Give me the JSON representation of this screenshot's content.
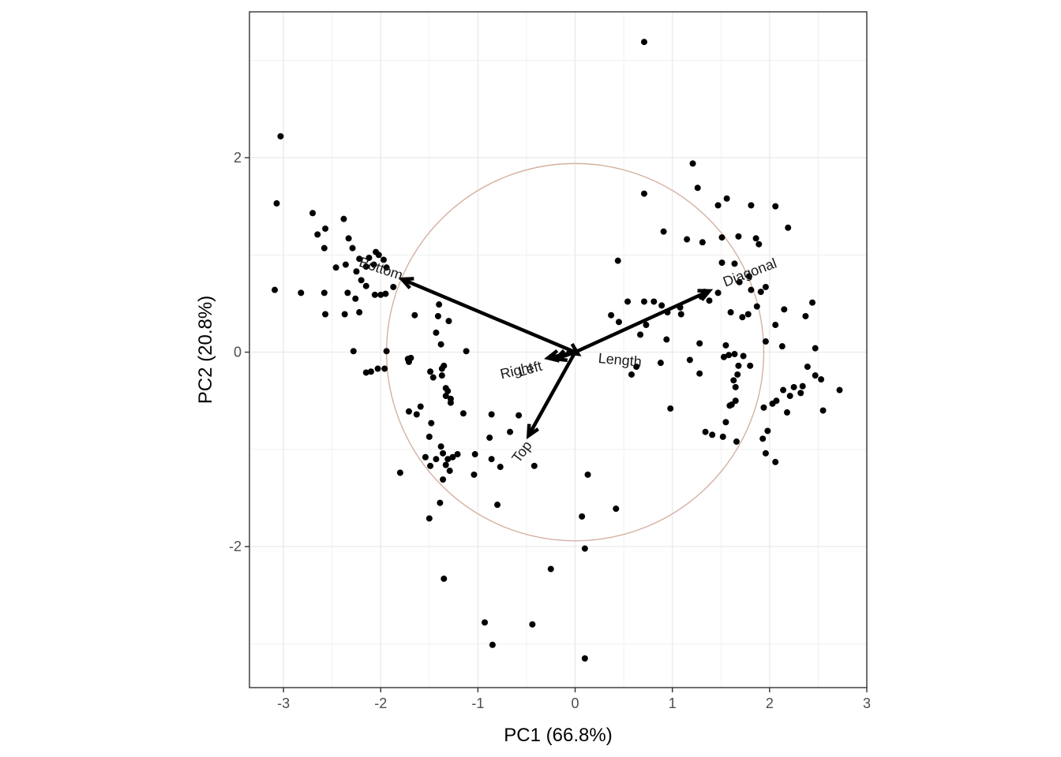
{
  "chart_data": {
    "type": "scatter",
    "title": "",
    "xlabel": "PC1 (66.8%)",
    "ylabel": "PC2 (20.8%)",
    "xlim": [
      -3.35,
      3.0
    ],
    "ylim": [
      -3.45,
      3.5
    ],
    "x_ticks": [
      -3,
      -2,
      -1,
      0,
      1,
      2,
      3
    ],
    "y_ticks": [
      -2,
      0,
      2
    ],
    "x_tick_labels": [
      "-3",
      "-2",
      "-1",
      "0",
      "1",
      "2",
      "3"
    ],
    "y_tick_labels": [
      "-2",
      "0",
      "2"
    ],
    "grid": true,
    "point_color": "#000000",
    "circle_color": "#d4b0a2",
    "circle_radius": 1.94,
    "arrow_color": "#000000",
    "points": [
      [
        0.71,
        3.19
      ],
      [
        -3.03,
        2.22
      ],
      [
        -3.07,
        1.53
      ],
      [
        -2.7,
        1.43
      ],
      [
        -2.38,
        1.37
      ],
      [
        -2.65,
        1.21
      ],
      [
        -2.57,
        1.27
      ],
      [
        -2.33,
        1.17
      ],
      [
        -2.29,
        1.07
      ],
      [
        -2.58,
        1.07
      ],
      [
        -2.46,
        0.87
      ],
      [
        -2.36,
        0.9
      ],
      [
        -2.15,
        0.88
      ],
      [
        -2.07,
        0.9
      ],
      [
        -2.12,
        0.97
      ],
      [
        -2.22,
        0.96
      ],
      [
        -2.02,
        1.0
      ],
      [
        -1.94,
        0.87
      ],
      [
        -2.05,
        1.03
      ],
      [
        -1.97,
        0.95
      ],
      [
        -3.09,
        0.64
      ],
      [
        -2.82,
        0.61
      ],
      [
        -2.58,
        0.61
      ],
      [
        -2.34,
        0.61
      ],
      [
        -2.26,
        0.55
      ],
      [
        -2.06,
        0.59
      ],
      [
        -2.0,
        0.59
      ],
      [
        -1.95,
        0.6
      ],
      [
        -1.87,
        0.67
      ],
      [
        -2.2,
        0.74
      ],
      [
        -2.15,
        0.68
      ],
      [
        -2.25,
        0.83
      ],
      [
        -2.57,
        0.39
      ],
      [
        -2.37,
        0.39
      ],
      [
        -2.22,
        0.41
      ],
      [
        -1.65,
        0.38
      ],
      [
        -1.4,
        0.49
      ],
      [
        -1.41,
        0.37
      ],
      [
        -1.3,
        0.32
      ],
      [
        -2.28,
        0.01
      ],
      [
        -1.94,
        0.01
      ],
      [
        -1.38,
        0.08
      ],
      [
        -1.43,
        0.2
      ],
      [
        -2.1,
        -0.2
      ],
      [
        -2.15,
        -0.21
      ],
      [
        -2.03,
        -0.17
      ],
      [
        -1.96,
        -0.17
      ],
      [
        -1.72,
        -0.07
      ],
      [
        -1.69,
        -0.06
      ],
      [
        -1.71,
        -0.1
      ],
      [
        -1.49,
        -0.2
      ],
      [
        -1.46,
        -0.26
      ],
      [
        -1.35,
        -0.14
      ],
      [
        -1.37,
        -0.17
      ],
      [
        -1.37,
        -0.24
      ],
      [
        -1.31,
        -0.4
      ],
      [
        -1.33,
        -0.37
      ],
      [
        -1.33,
        -0.45
      ],
      [
        -1.28,
        -0.48
      ],
      [
        -1.28,
        -0.52
      ],
      [
        -1.15,
        -0.63
      ],
      [
        -1.71,
        -0.61
      ],
      [
        -1.63,
        -0.64
      ],
      [
        -1.59,
        -0.56
      ],
      [
        -1.48,
        -0.73
      ],
      [
        -1.5,
        -0.87
      ],
      [
        -1.38,
        -0.97
      ],
      [
        -1.36,
        -1.04
      ],
      [
        -1.31,
        -1.1
      ],
      [
        -1.43,
        -1.1
      ],
      [
        -1.49,
        -1.17
      ],
      [
        -1.54,
        -1.08
      ],
      [
        -1.26,
        -1.08
      ],
      [
        -1.21,
        -1.05
      ],
      [
        -1.33,
        -1.16
      ],
      [
        -1.29,
        -1.22
      ],
      [
        -1.36,
        -1.31
      ],
      [
        -1.8,
        -1.24
      ],
      [
        -1.03,
        -1.05
      ],
      [
        -1.04,
        -1.26
      ],
      [
        -0.86,
        -0.64
      ],
      [
        -0.88,
        -0.88
      ],
      [
        -0.58,
        -0.65
      ],
      [
        -0.67,
        -0.82
      ],
      [
        -0.86,
        -1.1
      ],
      [
        -0.77,
        -1.18
      ],
      [
        -0.42,
        -1.17
      ],
      [
        -0.8,
        -1.57
      ],
      [
        -1.39,
        -1.55
      ],
      [
        -1.5,
        -1.71
      ],
      [
        -1.35,
        -2.33
      ],
      [
        0.07,
        -1.69
      ],
      [
        0.13,
        -1.26
      ],
      [
        0.42,
        -1.61
      ],
      [
        0.1,
        -2.02
      ],
      [
        -0.25,
        -2.23
      ],
      [
        -0.93,
        -2.78
      ],
      [
        -0.85,
        -3.01
      ],
      [
        -0.44,
        -2.8
      ],
      [
        0.1,
        -3.15
      ],
      [
        -1.12,
        0.01
      ],
      [
        0.44,
        0.94
      ],
      [
        0.71,
        1.63
      ],
      [
        0.91,
        1.24
      ],
      [
        1.21,
        1.94
      ],
      [
        1.26,
        1.69
      ],
      [
        1.15,
        1.16
      ],
      [
        1.31,
        1.13
      ],
      [
        1.47,
        1.51
      ],
      [
        1.56,
        1.58
      ],
      [
        1.51,
        1.18
      ],
      [
        1.68,
        1.19
      ],
      [
        1.81,
        1.51
      ],
      [
        1.86,
        1.17
      ],
      [
        1.89,
        1.11
      ],
      [
        2.06,
        1.5
      ],
      [
        2.19,
        1.28
      ],
      [
        1.51,
        0.92
      ],
      [
        1.64,
        0.91
      ],
      [
        1.79,
        0.78
      ],
      [
        1.69,
        0.72
      ],
      [
        1.81,
        0.64
      ],
      [
        1.91,
        0.62
      ],
      [
        1.96,
        0.67
      ],
      [
        1.38,
        0.53
      ],
      [
        1.47,
        0.61
      ],
      [
        1.3,
        0.57
      ],
      [
        1.33,
        0.62
      ],
      [
        0.81,
        0.52
      ],
      [
        0.89,
        0.48
      ],
      [
        0.95,
        0.41
      ],
      [
        1.08,
        0.46
      ],
      [
        1.09,
        0.39
      ],
      [
        0.71,
        0.52
      ],
      [
        0.54,
        0.52
      ],
      [
        0.45,
        0.31
      ],
      [
        0.73,
        0.28
      ],
      [
        0.67,
        0.18
      ],
      [
        0.37,
        0.38
      ],
      [
        0.94,
        0.13
      ],
      [
        1.28,
        0.09
      ],
      [
        1.6,
        0.41
      ],
      [
        1.72,
        0.36
      ],
      [
        1.78,
        0.39
      ],
      [
        1.87,
        0.47
      ],
      [
        2.15,
        0.44
      ],
      [
        2.06,
        0.28
      ],
      [
        2.13,
        0.06
      ],
      [
        1.96,
        0.11
      ],
      [
        2.44,
        0.51
      ],
      [
        2.37,
        0.37
      ],
      [
        2.47,
        0.04
      ],
      [
        2.39,
        -0.15
      ],
      [
        2.47,
        -0.24
      ],
      [
        2.53,
        -0.28
      ],
      [
        2.55,
        -0.6
      ],
      [
        2.72,
        -0.39
      ],
      [
        2.34,
        -0.35
      ],
      [
        2.25,
        -0.36
      ],
      [
        2.32,
        -0.42
      ],
      [
        2.14,
        -0.39
      ],
      [
        2.21,
        -0.45
      ],
      [
        2.18,
        -0.62
      ],
      [
        2.07,
        -0.5
      ],
      [
        2.03,
        -0.53
      ],
      [
        1.94,
        -0.57
      ],
      [
        1.98,
        -0.81
      ],
      [
        1.93,
        -0.89
      ],
      [
        1.96,
        -1.04
      ],
      [
        2.06,
        -1.13
      ],
      [
        1.67,
        -0.23
      ],
      [
        1.63,
        -0.29
      ],
      [
        1.65,
        -0.36
      ],
      [
        1.65,
        -0.5
      ],
      [
        1.59,
        -0.55
      ],
      [
        1.61,
        -0.54
      ],
      [
        1.55,
        -0.72
      ],
      [
        1.52,
        -0.87
      ],
      [
        1.66,
        -0.92
      ],
      [
        1.58,
        -0.03
      ],
      [
        1.64,
        -0.02
      ],
      [
        1.73,
        -0.04
      ],
      [
        1.53,
        -0.05
      ],
      [
        1.68,
        -0.14
      ],
      [
        1.8,
        -0.14
      ],
      [
        1.18,
        -0.08
      ],
      [
        1.28,
        -0.22
      ],
      [
        1.34,
        -0.82
      ],
      [
        1.41,
        -0.85
      ],
      [
        0.98,
        -0.58
      ],
      [
        0.58,
        -0.23
      ],
      [
        0.63,
        -0.15
      ],
      [
        0.88,
        -0.11
      ],
      [
        1.55,
        0.07
      ]
    ],
    "loadings": [
      {
        "label": "Bottom",
        "x": -1.78,
        "y": 0.75
      },
      {
        "label": "Diagonal",
        "x": 1.38,
        "y": 0.63
      },
      {
        "label": "Top",
        "x": -0.48,
        "y": -0.86
      },
      {
        "label": "Right",
        "x": -0.28,
        "y": -0.06
      },
      {
        "label": "Left",
        "x": -0.2,
        "y": -0.07
      },
      {
        "label": "Length",
        "x": 0.03,
        "y": -0.02
      }
    ]
  }
}
